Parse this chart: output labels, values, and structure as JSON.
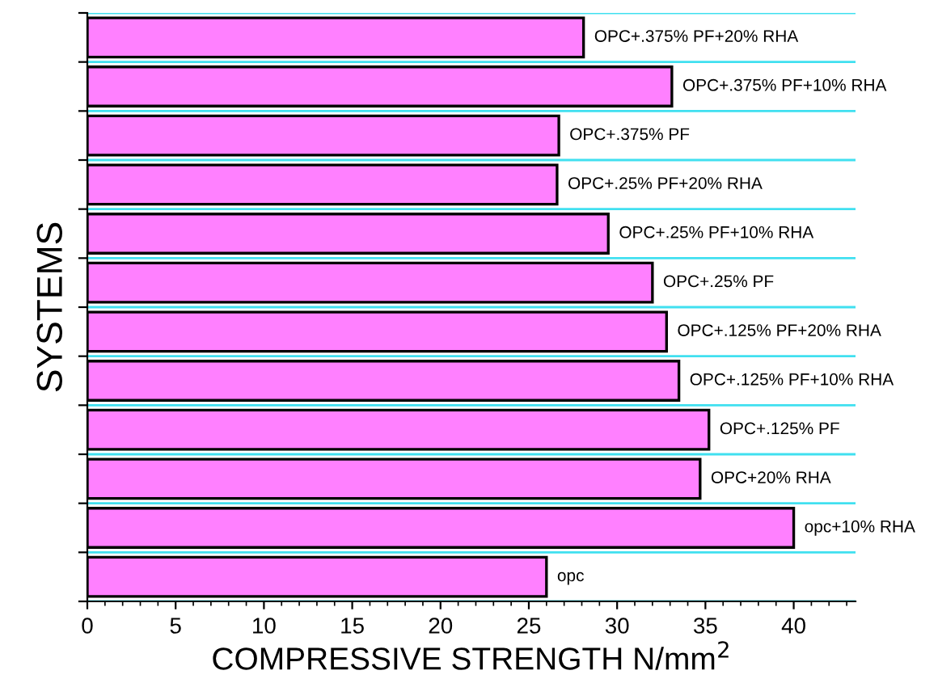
{
  "chart_data": {
    "type": "bar",
    "orientation": "horizontal",
    "ylabel": "SYSTEMS",
    "xlabel": "COMPRESSIVE STRENGTH N/mm$^{2}$",
    "categories": [
      "OPC+.375% PF+20% RHA",
      "OPC+.375% PF+10% RHA",
      "OPC+.375% PF",
      "OPC+.25% PF+20% RHA",
      "OPC+.25% PF+10% RHA",
      "OPC+.25% PF",
      "OPC+.125% PF+20% RHA",
      "OPC+.125% PF+10% RHA",
      "OPC+.125% PF",
      "OPC+20% RHA",
      "opc+10% RHA",
      "opc"
    ],
    "values": [
      28.1,
      33.1,
      26.7,
      26.6,
      29.5,
      32.0,
      32.8,
      33.5,
      35.2,
      34.7,
      40.0,
      26.0
    ],
    "color": "#ff80ff",
    "xlim": [
      0,
      43.5
    ],
    "xticks": [
      0,
      5,
      10,
      15,
      20,
      25,
      30,
      35,
      40
    ],
    "grid": "y",
    "tick_labels": "x"
  }
}
